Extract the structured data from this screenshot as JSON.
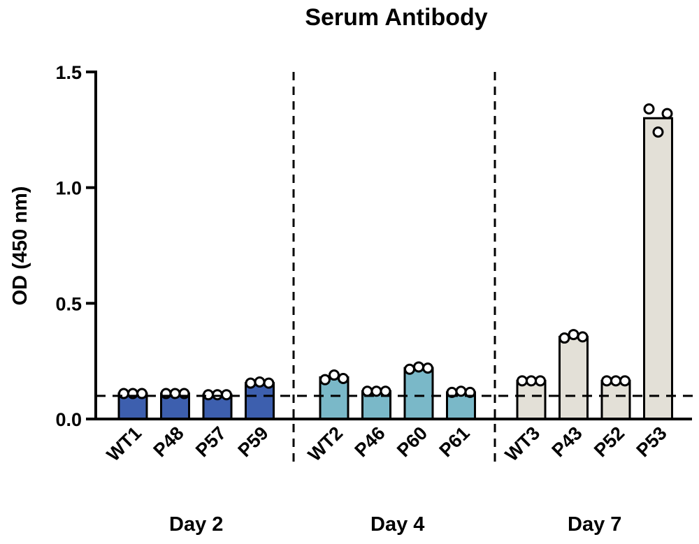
{
  "chart_data": {
    "type": "bar",
    "title": "Serum Antibody",
    "ylabel": "OD (450 nm)",
    "xlabel": "",
    "ylim": [
      0,
      1.5
    ],
    "yticks": [
      "0.0",
      "0.5",
      "1.0",
      "1.5"
    ],
    "yticks_values": [
      0,
      0.5,
      1.0,
      1.5
    ],
    "threshold": 0.1,
    "grid": false,
    "groups": [
      {
        "label": "Day 2",
        "color": "#3d5fae",
        "categories": [
          "WT1",
          "P48",
          "P57",
          "P59"
        ],
        "values": [
          0.11,
          0.11,
          0.105,
          0.155
        ],
        "points": [
          [
            0.11,
            0.11,
            0.11
          ],
          [
            0.11,
            0.11,
            0.11
          ],
          [
            0.105,
            0.105,
            0.105
          ],
          [
            0.155,
            0.16,
            0.155
          ]
        ]
      },
      {
        "label": "Day 4",
        "color": "#7ab8c8",
        "categories": [
          "WT2",
          "P46",
          "P60",
          "P61"
        ],
        "values": [
          0.18,
          0.12,
          0.22,
          0.115
        ],
        "points": [
          [
            0.17,
            0.19,
            0.175
          ],
          [
            0.12,
            0.12,
            0.12
          ],
          [
            0.215,
            0.225,
            0.22
          ],
          [
            0.115,
            0.12,
            0.115
          ]
        ]
      },
      {
        "label": "Day 7",
        "color": "#e3e0d7",
        "categories": [
          "WT3",
          "P43",
          "P52",
          "P53"
        ],
        "values": [
          0.165,
          0.355,
          0.165,
          1.3
        ],
        "points": [
          [
            0.165,
            0.165,
            0.165
          ],
          [
            0.35,
            0.365,
            0.355
          ],
          [
            0.165,
            0.165,
            0.165
          ],
          [
            1.34,
            1.24,
            1.32
          ]
        ]
      }
    ]
  }
}
